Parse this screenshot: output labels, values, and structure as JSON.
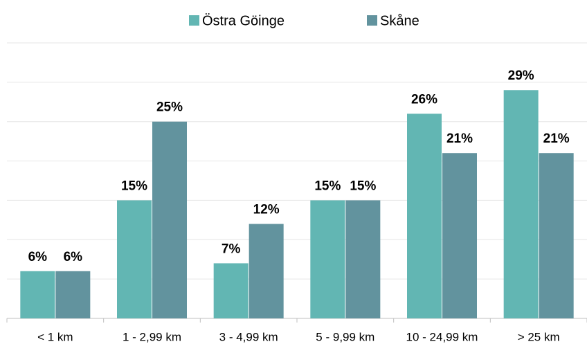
{
  "chart_data": {
    "type": "bar",
    "categories": [
      "< 1 km",
      "1 - 2,99 km",
      "3 - 4,99 km",
      "5 - 9,99 km",
      "10 - 24,99 km",
      "> 25 km"
    ],
    "series": [
      {
        "name": "Östra Göinge",
        "color": "#62b6b3",
        "values": [
          6,
          15,
          7,
          15,
          26,
          29
        ],
        "value_labels": [
          "6%",
          "15%",
          "7%",
          "15%",
          "26%",
          "29%"
        ]
      },
      {
        "name": "Skåne",
        "color": "#62939e",
        "values": [
          6,
          25,
          12,
          15,
          21,
          21
        ],
        "value_labels": [
          "6%",
          "25%",
          "12%",
          "15%",
          "21%",
          "21%"
        ]
      }
    ],
    "ylim": [
      0,
      35
    ],
    "yticks": [
      0,
      5,
      10,
      15,
      20,
      25,
      30,
      35
    ],
    "grid": true,
    "legend": "top"
  }
}
